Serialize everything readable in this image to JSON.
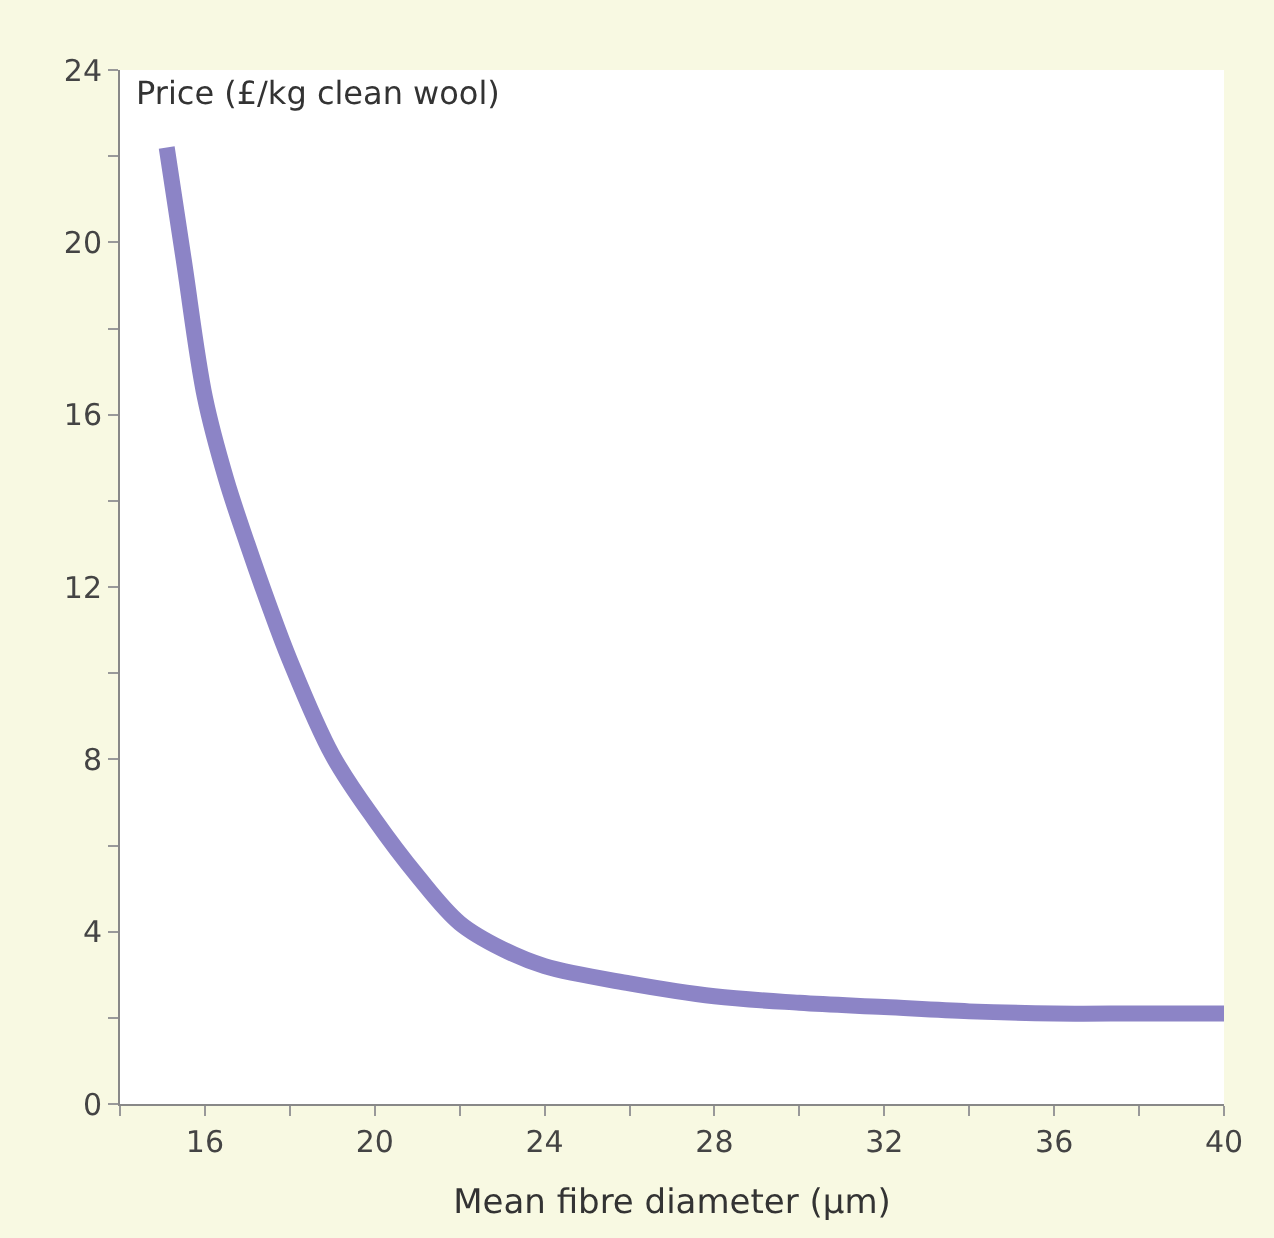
{
  "chart_data": {
    "type": "line",
    "ylabel": "Price (£/kg clean wool)",
    "xlabel": "Mean fibre diameter (µm)",
    "x": [
      15.1,
      15.5,
      16,
      16.5,
      17,
      17.5,
      18,
      19,
      20,
      21,
      22,
      23,
      24,
      26,
      28,
      30,
      32,
      34,
      36,
      38,
      40
    ],
    "series": [
      {
        "color": "#8c84c6",
        "values": [
          22.2,
          19.6,
          16.4,
          14.5,
          13,
          11.6,
          10.3,
          8.1,
          6.6,
          5.3,
          4.2,
          3.6,
          3.2,
          2.8,
          2.5,
          2.35,
          2.25,
          2.15,
          2.1,
          2.1,
          2.1
        ]
      }
    ],
    "xlim": [
      14,
      40
    ],
    "ylim": [
      0,
      24
    ],
    "xticks": [
      {
        "value": 14,
        "label": null
      },
      16,
      {
        "value": 18,
        "label": null
      },
      20,
      {
        "value": 22,
        "label": null
      },
      24,
      {
        "value": 26,
        "label": null
      },
      28,
      {
        "value": 30,
        "label": null
      },
      32,
      {
        "value": 34,
        "label": null
      },
      36,
      {
        "value": 38,
        "label": null
      },
      40
    ],
    "yticks": [
      0,
      {
        "value": 2,
        "label": null
      },
      4,
      {
        "value": 6,
        "label": null
      },
      8,
      {
        "value": 10,
        "label": null
      },
      12,
      {
        "value": 14,
        "label": null
      },
      16,
      {
        "value": 18,
        "label": null
      },
      20,
      {
        "value": 22,
        "label": null
      },
      24
    ],
    "legend": false,
    "marker": "none",
    "line_style": "solid"
  }
}
